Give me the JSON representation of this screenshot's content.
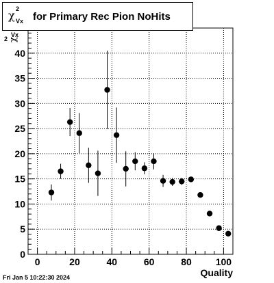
{
  "title": {
    "symbol": "χ",
    "superscript": "2",
    "subscript": "Vx",
    "text": "for Primary Rec Pion NoHits"
  },
  "y_axis_label": {
    "symbol": "χ",
    "superscript": "2",
    "subscript": "Vx"
  },
  "x_axis_label": "Quality",
  "footer_timestamp": "Fri Jan  5 10:22:30 2024",
  "chart_data": {
    "type": "scatter",
    "title": "χ²_Vx for Primary Rec Pion NoHits",
    "xlabel": "Quality",
    "ylabel": "χ²_Vx",
    "xlim": [
      -5,
      105
    ],
    "ylim": [
      0,
      45
    ],
    "x_ticks": [
      0,
      20,
      40,
      60,
      80,
      100
    ],
    "y_ticks": [
      0,
      5,
      10,
      15,
      20,
      25,
      30,
      35,
      40
    ],
    "grid": true,
    "series": [
      {
        "x": [
          7.5,
          12.5,
          17.5,
          22.5,
          27.5,
          32.5,
          37.5,
          42.5,
          47.5,
          52.5,
          57.5,
          62.5,
          67.5,
          72.5,
          77.5,
          82.5,
          87.5,
          92.5,
          97.5,
          102.5
        ],
        "y": [
          12.3,
          16.5,
          26.3,
          24.1,
          17.7,
          16.1,
          32.7,
          23.7,
          17.0,
          18.5,
          17.1,
          18.5,
          14.6,
          14.4,
          14.5,
          14.9,
          11.8,
          8.1,
          5.2,
          4.1
        ],
        "yerr": [
          1.6,
          1.5,
          2.8,
          4.0,
          3.5,
          4.5,
          7.8,
          5.5,
          3.5,
          1.8,
          1.2,
          1.6,
          1.2,
          0.8,
          0.7,
          0.5,
          0.4,
          0.4,
          0.3,
          0.3
        ]
      }
    ]
  }
}
